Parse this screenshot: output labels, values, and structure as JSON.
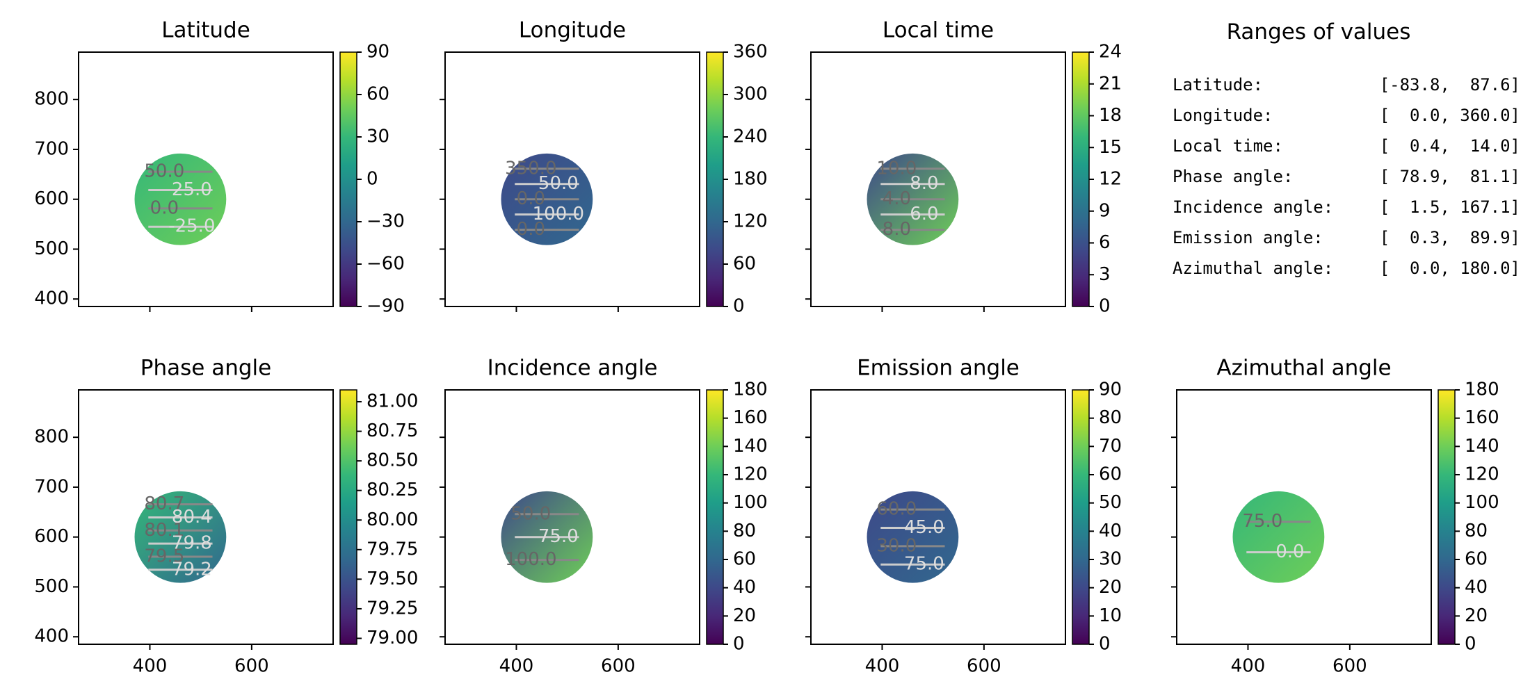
{
  "panels": [
    {
      "title": "Latitude",
      "cbar_ticks": [
        "90",
        "60",
        "30",
        "0",
        "−30",
        "−60",
        "−90"
      ],
      "contour_labels": [
        "50.0",
        "25.0",
        "0.0",
        "-25.0"
      ],
      "show_yticks": true,
      "show_xticks": false
    },
    {
      "title": "Longitude",
      "cbar_ticks": [
        "360",
        "300",
        "240",
        "180",
        "120",
        "60",
        "0"
      ],
      "contour_labels": [
        "350.0",
        "50.0",
        "0.0",
        "100.0",
        "0.0"
      ],
      "show_yticks": false,
      "show_xticks": false
    },
    {
      "title": "Local time",
      "cbar_ticks": [
        "24",
        "21",
        "18",
        "15",
        "12",
        "9",
        "6",
        "3",
        "0"
      ],
      "contour_labels": [
        "10.0",
        "8.0",
        "4.0",
        "6.0",
        "8.0"
      ],
      "show_yticks": false,
      "show_xticks": false
    },
    {
      "title": "Phase angle",
      "cbar_ticks": [
        "81.00",
        "80.75",
        "80.50",
        "80.25",
        "80.00",
        "79.75",
        "79.50",
        "79.25",
        "79.00"
      ],
      "contour_labels": [
        "80.7",
        "80.4",
        "80.1",
        "79.8",
        "79.5",
        "79.2"
      ],
      "show_yticks": true,
      "show_xticks": true
    },
    {
      "title": "Incidence angle",
      "cbar_ticks": [
        "180",
        "160",
        "140",
        "120",
        "100",
        "80",
        "60",
        "40",
        "20",
        "0"
      ],
      "contour_labels": [
        "50.0",
        "75.0",
        "100.0"
      ],
      "show_yticks": false,
      "show_xticks": true
    },
    {
      "title": "Emission angle",
      "cbar_ticks": [
        "90",
        "80",
        "70",
        "60",
        "50",
        "40",
        "30",
        "20",
        "10",
        "0"
      ],
      "contour_labels": [
        "60.0",
        "45.0",
        "30.0",
        "75.0"
      ],
      "show_yticks": false,
      "show_xticks": true
    },
    {
      "title": "Azimuthal angle",
      "cbar_ticks": [
        "180",
        "160",
        "140",
        "120",
        "100",
        "80",
        "60",
        "40",
        "20",
        "0"
      ],
      "contour_labels": [
        "75.0",
        "0.0"
      ],
      "show_yticks": false,
      "show_xticks": true
    }
  ],
  "axes": {
    "x_ticks": [
      "400",
      "600"
    ],
    "y_ticks": [
      "800",
      "700",
      "600",
      "500",
      "400"
    ]
  },
  "ranges_title": "Ranges of values",
  "ranges": [
    {
      "label": "Latitude:",
      "value": "[-83.8,  87.6]"
    },
    {
      "label": "Longitude:",
      "value": "[  0.0, 360.0]"
    },
    {
      "label": "Local time:",
      "value": "[  0.4,  14.0]"
    },
    {
      "label": "Phase angle:",
      "value": "[ 78.9,  81.1]"
    },
    {
      "label": "Incidence angle:",
      "value": "[  1.5, 167.1]"
    },
    {
      "label": "Emission angle:",
      "value": "[  0.3,  89.9]"
    },
    {
      "label": "Azimuthal angle:",
      "value": "[  0.0, 180.0]"
    }
  ],
  "chart_data": {
    "type": "heatmap",
    "colormap": "viridis",
    "x_range": [
      260,
      760
    ],
    "y_range": [
      385,
      895
    ],
    "disk_center": [
      460,
      600
    ],
    "disk_radius": 90,
    "panels": [
      {
        "name": "Latitude",
        "clim": [
          -90,
          90
        ],
        "range": [
          -83.8,
          87.6
        ],
        "contour_levels": [
          50,
          25,
          0,
          -25
        ]
      },
      {
        "name": "Longitude",
        "clim": [
          0,
          360
        ],
        "range": [
          0.0,
          360.0
        ],
        "contour_levels": [
          350,
          50,
          0,
          100
        ]
      },
      {
        "name": "Local time",
        "clim": [
          0,
          24
        ],
        "range": [
          0.4,
          14.0
        ],
        "contour_levels": [
          10,
          8,
          6,
          4
        ]
      },
      {
        "name": "Phase angle",
        "clim": [
          78.95,
          81.1
        ],
        "range": [
          78.9,
          81.1
        ],
        "contour_levels": [
          80.7,
          80.4,
          80.1,
          79.8,
          79.5,
          79.2
        ]
      },
      {
        "name": "Incidence angle",
        "clim": [
          0,
          180
        ],
        "range": [
          1.5,
          167.1
        ],
        "contour_levels": [
          50,
          75,
          100
        ]
      },
      {
        "name": "Emission angle",
        "clim": [
          0,
          90
        ],
        "range": [
          0.3,
          89.9
        ],
        "contour_levels": [
          30,
          45,
          60,
          75
        ]
      },
      {
        "name": "Azimuthal angle",
        "clim": [
          0,
          180
        ],
        "range": [
          0.0,
          180.0
        ],
        "contour_levels": [
          0,
          75
        ]
      }
    ]
  },
  "colors": {
    "viridis": [
      "#440154",
      "#482878",
      "#3e4989",
      "#31688e",
      "#26828e",
      "#1f9e89",
      "#35b779",
      "#6ece58",
      "#b5de2b",
      "#fde725"
    ]
  }
}
